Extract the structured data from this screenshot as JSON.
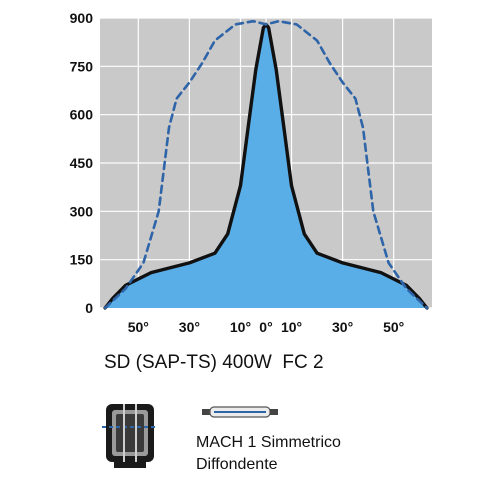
{
  "chart_data": {
    "type": "line",
    "ylim": [
      0,
      900
    ],
    "y_ticks": [
      "900",
      "750",
      "600",
      "450",
      "300",
      "150",
      "0"
    ],
    "x_ticks": [
      "50°",
      "30°",
      "10°",
      "0°",
      "10°",
      "30°",
      "50°"
    ],
    "x_tick_angles": [
      -50,
      -30,
      -10,
      0,
      10,
      30,
      50
    ],
    "xlim": [
      -65,
      65
    ],
    "grid": true,
    "background_color": "#c9c9c9",
    "series": [
      {
        "style": "solid-filled",
        "color": "#111111",
        "fill": "#5aaee8",
        "points": [
          [
            -63,
            0
          ],
          [
            -60,
            30
          ],
          [
            -55,
            70
          ],
          [
            -45,
            110
          ],
          [
            -30,
            140
          ],
          [
            -20,
            170
          ],
          [
            -15,
            230
          ],
          [
            -10,
            380
          ],
          [
            -7,
            560
          ],
          [
            -4,
            740
          ],
          [
            -1,
            870
          ],
          [
            0,
            880
          ],
          [
            1,
            870
          ],
          [
            4,
            740
          ],
          [
            7,
            560
          ],
          [
            10,
            380
          ],
          [
            15,
            230
          ],
          [
            20,
            170
          ],
          [
            30,
            140
          ],
          [
            45,
            110
          ],
          [
            55,
            70
          ],
          [
            60,
            30
          ],
          [
            63,
            0
          ]
        ]
      },
      {
        "style": "dashed",
        "color": "#2e64a8",
        "points": [
          [
            -63,
            0
          ],
          [
            -55,
            60
          ],
          [
            -48,
            140
          ],
          [
            -42,
            300
          ],
          [
            -38,
            560
          ],
          [
            -35,
            650
          ],
          [
            -30,
            700
          ],
          [
            -25,
            760
          ],
          [
            -20,
            830
          ],
          [
            -12,
            880
          ],
          [
            -5,
            890
          ],
          [
            0,
            880
          ],
          [
            5,
            890
          ],
          [
            12,
            880
          ],
          [
            20,
            830
          ],
          [
            25,
            760
          ],
          [
            30,
            700
          ],
          [
            35,
            650
          ],
          [
            38,
            560
          ],
          [
            42,
            300
          ],
          [
            48,
            140
          ],
          [
            55,
            60
          ],
          [
            63,
            0
          ]
        ]
      }
    ]
  },
  "caption": "SD (SAP-TS) 400W  FC 2",
  "device_label": [
    "MACH 1 Simmetrico",
    "Diffondente"
  ]
}
